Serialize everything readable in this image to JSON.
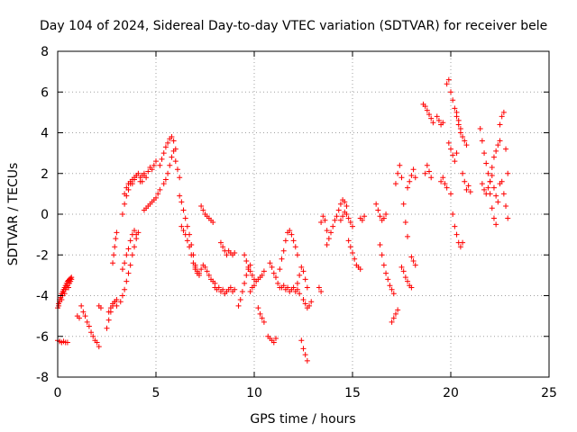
{
  "chart_data": {
    "type": "scatter",
    "title": "Day 104 of 2024, Sidereal Day-to-day VTEC variation (SDTVAR) for receiver bele",
    "xlabel": "GPS time / hours",
    "ylabel": "SDTVAR / TECUs",
    "xlim": [
      0,
      25
    ],
    "ylim": [
      -8,
      8
    ],
    "xticks": [
      0,
      5,
      10,
      15,
      20,
      25
    ],
    "yticks": [
      -8,
      -6,
      -4,
      -2,
      0,
      2,
      4,
      6,
      8
    ],
    "grid": true,
    "marker": "+",
    "color": "#ff0000",
    "series": [
      {
        "name": "seg01",
        "x": [
          0.0,
          0.05,
          0.1,
          0.15,
          0.2,
          0.25,
          0.3,
          0.35,
          0.4,
          0.45,
          0.5,
          0.55,
          0.6,
          0.65,
          0.7
        ],
        "y": [
          -4.6,
          -4.4,
          -4.2,
          -4.0,
          -3.9,
          -3.8,
          -3.7,
          -3.6,
          -3.5,
          -3.4,
          -3.3,
          -3.25,
          -3.2,
          -3.15,
          -3.1
        ]
      },
      {
        "name": "seg02",
        "x": [
          0.05,
          0.1,
          0.15,
          0.2,
          0.25,
          0.3,
          0.35,
          0.4,
          0.45,
          0.5,
          0.55,
          0.6,
          0.65,
          0.7
        ],
        "y": [
          -4.5,
          -4.3,
          -4.1,
          -4.2,
          -4.0,
          -3.8,
          -3.9,
          -3.7,
          -3.6,
          -3.5,
          -3.6,
          -3.4,
          -3.3,
          -3.2
        ]
      },
      {
        "name": "seg03",
        "x": [
          0.0,
          0.1,
          0.2,
          0.3,
          0.4,
          0.5
        ],
        "y": [
          -6.2,
          -6.25,
          -6.3,
          -6.25,
          -6.3,
          -6.3
        ]
      },
      {
        "name": "seg04",
        "x": [
          1.2,
          1.3,
          1.4,
          1.5,
          1.6,
          1.7,
          1.8,
          1.9,
          2.0,
          2.1
        ],
        "y": [
          -4.5,
          -4.8,
          -5.0,
          -5.3,
          -5.5,
          -5.8,
          -6.0,
          -6.2,
          -6.3,
          -6.5
        ]
      },
      {
        "name": "seg05",
        "x": [
          1.0,
          1.1
        ],
        "y": [
          -5.0,
          -5.1
        ]
      },
      {
        "name": "seg06",
        "x": [
          2.1,
          2.2
        ],
        "y": [
          -4.5,
          -4.6
        ]
      },
      {
        "name": "seg07",
        "x": [
          2.5,
          2.6,
          2.7,
          2.8,
          2.9,
          3.0
        ],
        "y": [
          -5.6,
          -5.2,
          -4.8,
          -4.5,
          -4.3,
          -4.2
        ]
      },
      {
        "name": "seg08",
        "x": [
          2.6,
          2.7,
          2.8,
          2.9,
          3.0
        ],
        "y": [
          -4.8,
          -4.6,
          -4.4,
          -4.3,
          -4.5
        ]
      },
      {
        "name": "seg09",
        "x": [
          2.8,
          2.85,
          2.9,
          2.95,
          3.0
        ],
        "y": [
          -2.4,
          -2.0,
          -1.6,
          -1.2,
          -0.9
        ]
      },
      {
        "name": "seg10",
        "x": [
          3.2,
          3.3,
          3.4,
          3.5,
          3.6,
          3.7,
          3.8,
          3.9,
          4.0,
          4.1
        ],
        "y": [
          -4.3,
          -4.0,
          -3.7,
          -3.3,
          -2.9,
          -2.5,
          -2.0,
          -1.6,
          -1.2,
          -0.9
        ]
      },
      {
        "name": "seg11",
        "x": [
          3.3,
          3.4,
          3.5,
          3.6,
          3.7,
          3.8,
          3.9,
          4.0
        ],
        "y": [
          -2.7,
          -2.4,
          -2.0,
          -1.7,
          -1.3,
          -1.0,
          -0.8,
          -1.0
        ]
      },
      {
        "name": "seg12",
        "x": [
          3.3,
          3.4,
          3.5,
          3.6,
          3.7,
          3.8,
          3.9,
          4.0,
          4.1,
          4.2,
          4.3,
          4.4
        ],
        "y": [
          0.0,
          0.5,
          0.9,
          1.2,
          1.5,
          1.7,
          1.8,
          1.9,
          2.0,
          1.8,
          1.6,
          1.9
        ]
      },
      {
        "name": "seg13",
        "x": [
          3.4,
          3.5,
          3.6,
          3.7,
          3.8,
          3.9,
          4.0
        ],
        "y": [
          1.0,
          1.3,
          1.5,
          1.6,
          1.5,
          1.7,
          1.9
        ]
      },
      {
        "name": "seg14",
        "x": [
          4.2,
          4.3,
          4.4,
          4.5,
          4.6,
          4.7,
          4.8,
          4.9,
          5.0
        ],
        "y": [
          1.6,
          1.9,
          2.0,
          1.8,
          2.1,
          2.3,
          2.2,
          2.4,
          2.6
        ]
      },
      {
        "name": "seg15",
        "x": [
          4.4,
          4.5,
          4.6,
          4.7,
          4.8,
          4.9,
          5.0,
          5.1,
          5.2
        ],
        "y": [
          0.2,
          0.3,
          0.4,
          0.5,
          0.6,
          0.7,
          0.8,
          1.0,
          1.2
        ]
      },
      {
        "name": "seg16",
        "x": [
          5.2,
          5.3,
          5.4,
          5.5,
          5.6,
          5.7,
          5.8,
          5.9,
          6.0
        ],
        "y": [
          2.4,
          2.7,
          3.0,
          3.3,
          3.5,
          3.7,
          3.8,
          3.6,
          3.2
        ]
      },
      {
        "name": "seg17",
        "x": [
          5.4,
          5.5,
          5.6,
          5.7,
          5.8,
          5.9,
          6.0,
          6.1,
          6.2
        ],
        "y": [
          1.5,
          1.7,
          2.0,
          2.4,
          2.8,
          3.1,
          2.6,
          2.2,
          1.8
        ]
      },
      {
        "name": "seg18",
        "x": [
          6.2,
          6.3,
          6.4,
          6.5,
          6.6,
          6.7,
          6.8,
          6.9,
          7.0
        ],
        "y": [
          0.9,
          0.6,
          0.2,
          -0.2,
          -0.6,
          -1.0,
          -1.5,
          -2.0,
          -2.5
        ]
      },
      {
        "name": "seg19",
        "x": [
          6.3,
          6.4,
          6.5,
          6.6,
          6.7,
          6.8,
          6.9,
          7.0,
          7.1,
          7.2
        ],
        "y": [
          -0.6,
          -0.8,
          -1.0,
          -1.3,
          -1.6,
          -2.0,
          -2.4,
          -2.7,
          -2.9,
          -3.0
        ]
      },
      {
        "name": "seg20",
        "x": [
          7.0,
          7.1,
          7.2,
          7.3,
          7.4,
          7.5,
          7.6,
          7.7,
          7.8,
          7.9,
          8.0
        ],
        "y": [
          -2.6,
          -2.8,
          -2.9,
          -2.7,
          -2.5,
          -2.6,
          -2.8,
          -3.0,
          -3.2,
          -3.3,
          -3.4
        ]
      },
      {
        "name": "seg21",
        "x": [
          7.3,
          7.4,
          7.5,
          7.6,
          7.7,
          7.8,
          7.9
        ],
        "y": [
          0.4,
          0.2,
          0.0,
          -0.1,
          -0.2,
          -0.3,
          -0.4
        ]
      },
      {
        "name": "seg22",
        "x": [
          8.0,
          8.1,
          8.2,
          8.3,
          8.4,
          8.5,
          8.6,
          8.7,
          8.8,
          8.9,
          9.0
        ],
        "y": [
          -3.6,
          -3.7,
          -3.6,
          -3.8,
          -3.7,
          -3.9,
          -3.8,
          -3.7,
          -3.6,
          -3.8,
          -3.7
        ]
      },
      {
        "name": "seg23",
        "x": [
          8.3,
          8.4,
          8.5,
          8.6,
          8.7,
          8.8,
          8.9,
          9.0
        ],
        "y": [
          -1.4,
          -1.6,
          -1.8,
          -2.0,
          -1.8,
          -1.9,
          -2.0,
          -1.9
        ]
      },
      {
        "name": "seg24",
        "x": [
          9.2,
          9.3,
          9.4,
          9.5,
          9.6,
          9.7,
          9.8
        ],
        "y": [
          -4.5,
          -4.2,
          -3.8,
          -3.4,
          -3.0,
          -2.7,
          -2.5
        ]
      },
      {
        "name": "seg25",
        "x": [
          9.5,
          9.6,
          9.7,
          9.8,
          9.9,
          10.0
        ],
        "y": [
          -2.0,
          -2.3,
          -2.6,
          -2.8,
          -3.0,
          -3.2
        ]
      },
      {
        "name": "seg26",
        "x": [
          9.8,
          9.9,
          10.0,
          10.1,
          10.2,
          10.3,
          10.4,
          10.5
        ],
        "y": [
          -3.8,
          -3.6,
          -3.5,
          -3.3,
          -3.2,
          -3.1,
          -3.0,
          -2.8
        ]
      },
      {
        "name": "seg27",
        "x": [
          10.2,
          10.3,
          10.4,
          10.5
        ],
        "y": [
          -4.6,
          -4.9,
          -5.1,
          -5.3
        ]
      },
      {
        "name": "seg28",
        "x": [
          10.7,
          10.8,
          10.9,
          11.0,
          11.1
        ],
        "y": [
          -6.0,
          -6.1,
          -6.2,
          -6.3,
          -6.1
        ]
      },
      {
        "name": "seg29",
        "x": [
          10.8,
          10.9,
          11.0,
          11.1,
          11.2,
          11.3
        ],
        "y": [
          -2.4,
          -2.6,
          -2.9,
          -3.1,
          -3.4,
          -3.6
        ]
      },
      {
        "name": "seg30",
        "x": [
          11.3,
          11.4,
          11.5,
          11.6,
          11.7,
          11.8,
          11.9,
          12.0,
          12.1,
          12.2
        ],
        "y": [
          -2.7,
          -2.2,
          -1.8,
          -1.3,
          -0.9,
          -0.8,
          -1.0,
          -1.3,
          -1.6,
          -2.0
        ]
      },
      {
        "name": "seg31",
        "x": [
          11.4,
          11.5,
          11.6,
          11.7,
          11.8,
          11.9,
          12.0,
          12.1,
          12.2,
          12.3
        ],
        "y": [
          -3.6,
          -3.5,
          -3.7,
          -3.6,
          -3.8,
          -3.7,
          -3.6,
          -3.8,
          -3.7,
          -3.9
        ]
      },
      {
        "name": "seg32",
        "x": [
          12.2,
          12.3,
          12.4,
          12.5,
          12.6,
          12.7
        ],
        "y": [
          -3.4,
          -3.0,
          -2.6,
          -2.8,
          -3.2,
          -3.6
        ]
      },
      {
        "name": "seg33",
        "x": [
          12.4,
          12.5,
          12.6,
          12.7
        ],
        "y": [
          -6.2,
          -6.6,
          -6.9,
          -7.2
        ]
      },
      {
        "name": "seg34",
        "x": [
          12.5,
          12.6,
          12.7,
          12.8,
          12.9
        ],
        "y": [
          -4.2,
          -4.4,
          -4.6,
          -4.5,
          -4.3
        ]
      },
      {
        "name": "seg35",
        "x": [
          13.3,
          13.4
        ],
        "y": [
          -3.6,
          -3.8
        ]
      },
      {
        "name": "seg36",
        "x": [
          13.4,
          13.5,
          13.6,
          13.7
        ],
        "y": [
          -0.4,
          -0.1,
          -0.3,
          -0.8
        ]
      },
      {
        "name": "seg37",
        "x": [
          13.7,
          13.8,
          13.9,
          14.0,
          14.1,
          14.2,
          14.3,
          14.4,
          14.5,
          14.6,
          14.7
        ],
        "y": [
          -1.5,
          -1.2,
          -0.9,
          -0.6,
          -0.3,
          -0.1,
          0.2,
          0.5,
          0.7,
          0.6,
          0.4
        ]
      },
      {
        "name": "seg38",
        "x": [
          14.4,
          14.5,
          14.6,
          14.7,
          14.8,
          14.9,
          15.0
        ],
        "y": [
          -0.3,
          -0.1,
          0.1,
          0.0,
          -0.2,
          -0.4,
          -0.6
        ]
      },
      {
        "name": "seg39",
        "x": [
          14.8,
          14.9,
          15.0,
          15.1,
          15.2,
          15.3,
          15.4
        ],
        "y": [
          -1.3,
          -1.6,
          -1.9,
          -2.2,
          -2.5,
          -2.6,
          -2.7
        ]
      },
      {
        "name": "seg40",
        "x": [
          15.4,
          15.5,
          15.6
        ],
        "y": [
          -0.2,
          -0.3,
          -0.1
        ]
      },
      {
        "name": "seg41",
        "x": [
          16.2,
          16.3,
          16.4,
          16.5,
          16.6,
          16.7
        ],
        "y": [
          0.5,
          0.2,
          -0.1,
          -0.3,
          -0.2,
          0.0
        ]
      },
      {
        "name": "seg42",
        "x": [
          16.4,
          16.5,
          16.6,
          16.7,
          16.8,
          16.9,
          17.0,
          17.1
        ],
        "y": [
          -1.5,
          -2.0,
          -2.5,
          -2.9,
          -3.2,
          -3.5,
          -3.7,
          -3.9
        ]
      },
      {
        "name": "seg43",
        "x": [
          17.0,
          17.1,
          17.2,
          17.3
        ],
        "y": [
          -5.3,
          -5.1,
          -4.9,
          -4.7
        ]
      },
      {
        "name": "seg44",
        "x": [
          17.2,
          17.3,
          17.4,
          17.5,
          17.6,
          17.7,
          17.8
        ],
        "y": [
          1.5,
          2.0,
          2.4,
          1.8,
          0.5,
          -0.4,
          -1.1
        ]
      },
      {
        "name": "seg45",
        "x": [
          17.5,
          17.6,
          17.7,
          17.8,
          17.9,
          18.0
        ],
        "y": [
          -2.6,
          -2.8,
          -3.1,
          -3.3,
          -3.5,
          -3.6
        ]
      },
      {
        "name": "seg46",
        "x": [
          17.8,
          17.9,
          18.0,
          18.1,
          18.2
        ],
        "y": [
          1.3,
          1.6,
          1.9,
          2.2,
          1.8
        ]
      },
      {
        "name": "seg47",
        "x": [
          18.0,
          18.1,
          18.2
        ],
        "y": [
          -2.1,
          -2.3,
          -2.5
        ]
      },
      {
        "name": "seg48",
        "x": [
          18.6,
          18.7,
          18.8,
          18.9,
          19.0,
          19.1
        ],
        "y": [
          5.4,
          5.3,
          5.1,
          4.9,
          4.7,
          4.5
        ]
      },
      {
        "name": "seg49",
        "x": [
          18.7,
          18.8,
          18.9,
          19.0
        ],
        "y": [
          2.0,
          2.4,
          2.1,
          1.8
        ]
      },
      {
        "name": "seg50",
        "x": [
          19.3,
          19.4,
          19.5,
          19.6
        ],
        "y": [
          4.8,
          4.6,
          4.4,
          4.5
        ]
      },
      {
        "name": "seg51",
        "x": [
          19.5,
          19.6,
          19.7,
          19.8
        ],
        "y": [
          1.6,
          1.8,
          1.5,
          1.3
        ]
      },
      {
        "name": "seg52",
        "x": [
          19.8,
          19.9,
          20.0,
          20.1,
          20.2,
          20.3,
          20.4,
          20.5
        ],
        "y": [
          6.4,
          6.6,
          6.0,
          5.6,
          5.2,
          4.8,
          4.4,
          4.0
        ]
      },
      {
        "name": "seg53",
        "x": [
          19.9,
          20.0,
          20.1,
          20.2,
          20.3
        ],
        "y": [
          3.5,
          3.2,
          2.9,
          2.6,
          3.0
        ]
      },
      {
        "name": "seg54",
        "x": [
          20.0,
          20.1,
          20.2,
          20.3,
          20.4,
          20.5,
          20.6
        ],
        "y": [
          1.0,
          0.0,
          -0.6,
          -1.0,
          -1.4,
          -1.6,
          -1.4
        ]
      },
      {
        "name": "seg55",
        "x": [
          20.3,
          20.4,
          20.5,
          20.6,
          20.7,
          20.8
        ],
        "y": [
          5.0,
          4.6,
          4.2,
          3.8,
          3.6,
          3.4
        ]
      },
      {
        "name": "seg56",
        "x": [
          20.6,
          20.7,
          20.8,
          20.9,
          21.0
        ],
        "y": [
          2.0,
          1.6,
          1.2,
          1.4,
          1.1
        ]
      },
      {
        "name": "seg57",
        "x": [
          21.5,
          21.6,
          21.7,
          21.8,
          21.9,
          22.0,
          22.1,
          22.2,
          22.3,
          22.4,
          22.5
        ],
        "y": [
          4.2,
          3.6,
          3.0,
          2.5,
          2.0,
          1.6,
          2.3,
          2.8,
          3.1,
          3.4,
          3.6
        ]
      },
      {
        "name": "seg58",
        "x": [
          21.6,
          21.7,
          21.8,
          21.9,
          22.0,
          22.1,
          22.2,
          22.3,
          22.4,
          22.5
        ],
        "y": [
          1.5,
          1.2,
          1.0,
          1.3,
          1.6,
          1.9,
          1.3,
          0.9,
          0.6,
          1.5
        ]
      },
      {
        "name": "seg59",
        "x": [
          22.0,
          22.1,
          22.2,
          22.3
        ],
        "y": [
          1.0,
          0.3,
          -0.2,
          -0.5
        ]
      },
      {
        "name": "seg60",
        "x": [
          22.5,
          22.6,
          22.7,
          22.8,
          22.9
        ],
        "y": [
          4.4,
          4.8,
          5.0,
          3.2,
          2.0
        ]
      },
      {
        "name": "seg61",
        "x": [
          22.6,
          22.7,
          22.8,
          22.9
        ],
        "y": [
          1.6,
          1.0,
          0.4,
          -0.2
        ]
      }
    ]
  }
}
